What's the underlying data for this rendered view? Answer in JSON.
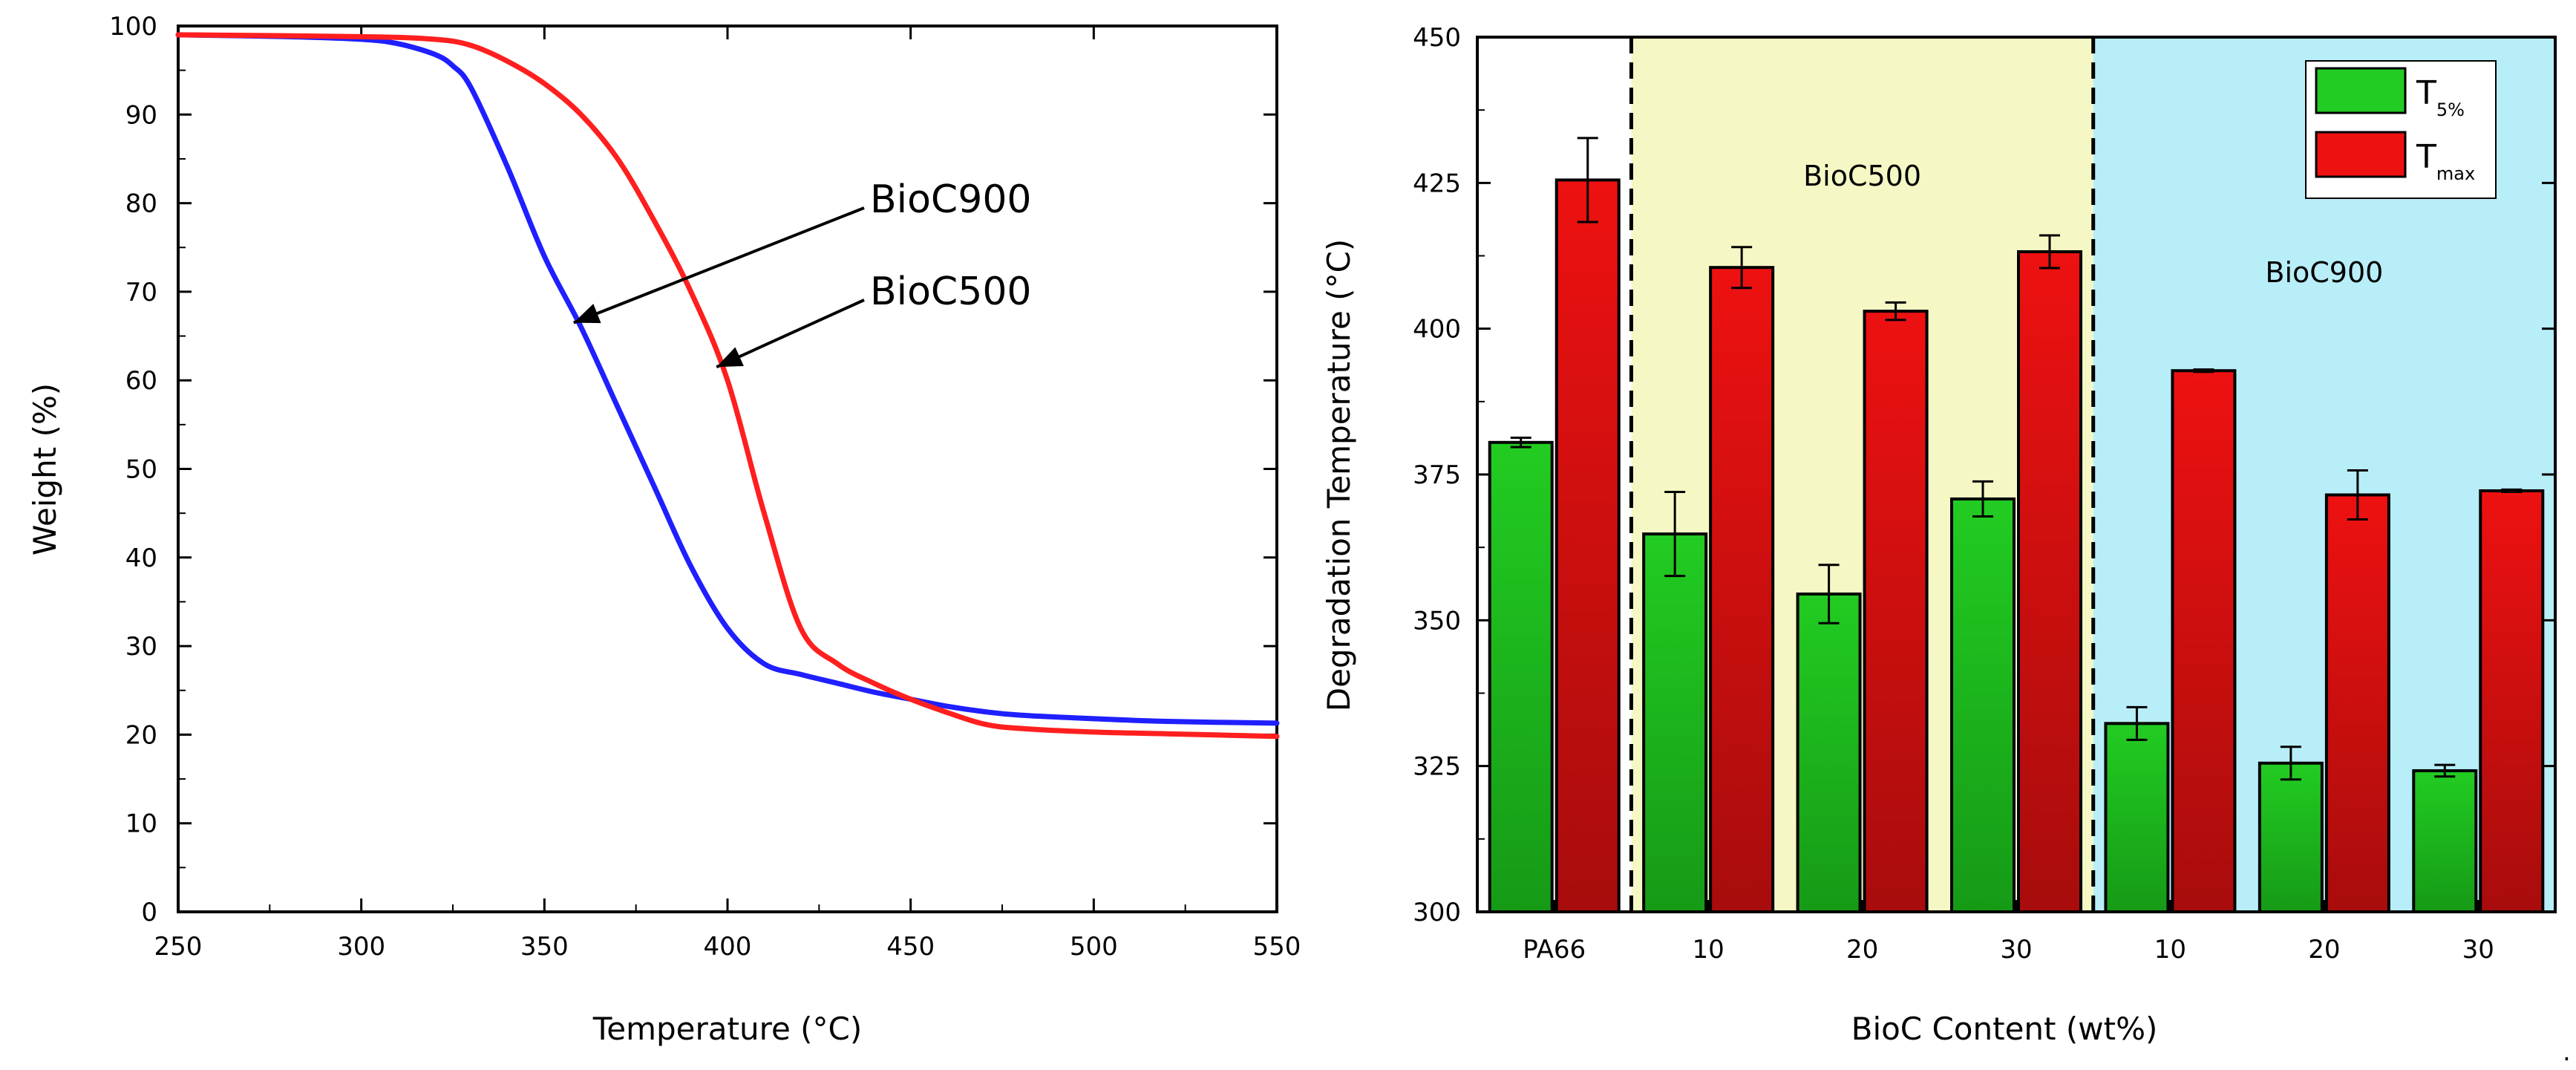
{
  "chart_data": [
    {
      "type": "line",
      "xlabel": "Temperature (°C)",
      "ylabel": "Weight (%)",
      "xlim": [
        250,
        550
      ],
      "ylim": [
        0,
        100
      ],
      "xticks": [
        250,
        300,
        350,
        400,
        450,
        500,
        550
      ],
      "yticks": [
        0,
        10,
        20,
        30,
        40,
        50,
        60,
        70,
        80,
        90,
        100
      ],
      "series": [
        {
          "name": "BioC900",
          "color": "#1f1fff",
          "x": [
            250,
            280,
            300,
            310,
            320,
            325,
            330,
            340,
            350,
            360,
            370,
            380,
            390,
            400,
            410,
            420,
            430,
            440,
            450,
            460,
            470,
            480,
            500,
            520,
            550
          ],
          "y": [
            99,
            98.8,
            98.5,
            98,
            96.8,
            95.5,
            93,
            84,
            74,
            66,
            57,
            48,
            39,
            32,
            28,
            26.8,
            25.8,
            24.8,
            24,
            23.2,
            22.6,
            22.2,
            21.8,
            21.5,
            21.3
          ]
        },
        {
          "name": "BioC500",
          "color": "#ff1f1f",
          "x": [
            250,
            300,
            320,
            330,
            340,
            350,
            360,
            370,
            380,
            390,
            400,
            410,
            420,
            430,
            440,
            450,
            460,
            470,
            480,
            500,
            520,
            550
          ],
          "y": [
            99,
            98.8,
            98.5,
            97.8,
            96,
            93.5,
            90,
            85,
            78,
            70,
            60,
            45,
            32,
            28,
            25.8,
            24,
            22.5,
            21.2,
            20.7,
            20.3,
            20.1,
            19.8
          ]
        }
      ],
      "annotations": [
        {
          "text": "BioC900",
          "x": 358,
          "y": 66.5
        },
        {
          "text": "BioC500",
          "x": 397,
          "y": 61.5
        }
      ]
    },
    {
      "type": "bar",
      "xlabel": "BioC Content (wt%)",
      "ylabel": "Degradation Temperature (°C)",
      "ylim": [
        300,
        450
      ],
      "yticks": [
        300,
        325,
        350,
        375,
        400,
        425,
        450
      ],
      "categories": [
        "PA66",
        "10",
        "20",
        "30",
        "10",
        "20",
        "30"
      ],
      "series": [
        {
          "name": "T5%",
          "label_main": "T",
          "label_sub": "5%",
          "color": "#22cc22",
          "values": [
            380.5,
            364.8,
            354.5,
            370.8,
            332.3,
            325.5,
            324.2
          ],
          "errors": [
            0.8,
            7.2,
            5.0,
            3.0,
            2.8,
            2.8,
            1.0
          ]
        },
        {
          "name": "Tmax",
          "label_main": "T",
          "label_sub": "max",
          "color": "#ee1111",
          "values": [
            425.5,
            410.5,
            403.0,
            413.2,
            392.8,
            371.5,
            372.2
          ],
          "errors": [
            7.2,
            3.5,
            1.5,
            2.8,
            0.2,
            4.2,
            0.2
          ]
        }
      ],
      "regions": [
        {
          "label": "BioC500",
          "color": "#f5f8c4",
          "categories": [
            1,
            2,
            3
          ]
        },
        {
          "label": "BioC900",
          "color": "#b8eef8",
          "categories": [
            4,
            5,
            6
          ]
        }
      ],
      "legend_position": "top-right"
    }
  ],
  "page": {
    "trailing_mark": "."
  }
}
